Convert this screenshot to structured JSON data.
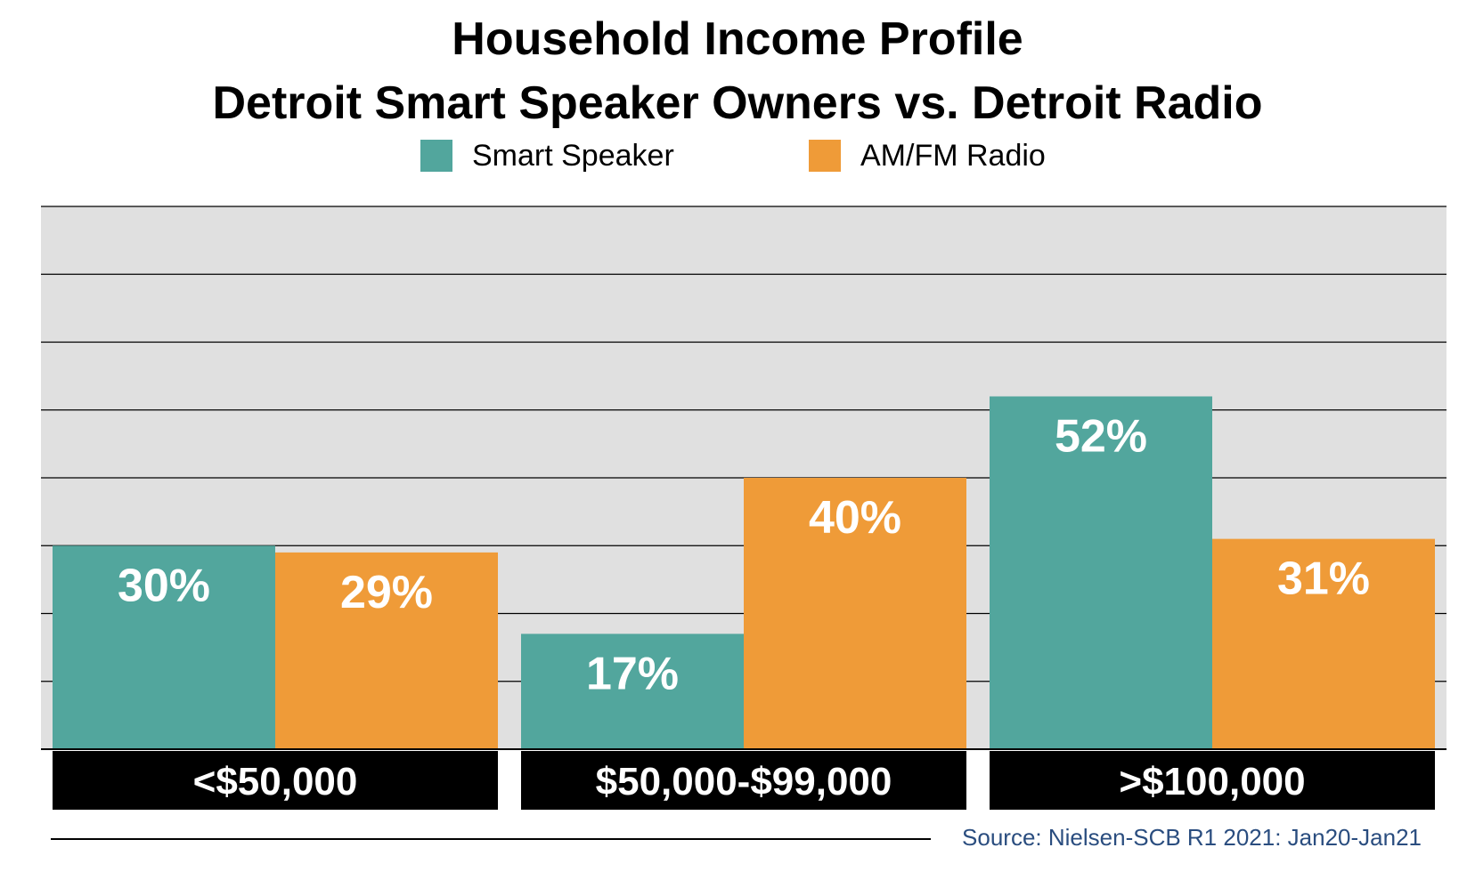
{
  "chart_data": {
    "type": "bar",
    "title": "Household Income Profile",
    "subtitle": "Detroit Smart Speaker Owners vs. Detroit Radio",
    "categories": [
      "<$50,000",
      "$50,000-$99,000",
      ">$100,000"
    ],
    "series": [
      {
        "name": "Smart Speaker",
        "values": [
          30,
          17,
          52
        ],
        "labels": [
          "30%",
          "17%",
          "52%"
        ],
        "color": "#52a69d"
      },
      {
        "name": "AM/FM Radio",
        "values": [
          29,
          40,
          31
        ],
        "labels": [
          "29%",
          "40%",
          "31%"
        ],
        "color": "#ef9b38"
      }
    ],
    "ylim": [
      0,
      80
    ],
    "grid": true,
    "legend": "top-center",
    "plot_background": "#e0e0e0",
    "category_label_background": "#000000"
  },
  "source": "Source: Nielsen-SCB R1 2021: Jan20-Jan21"
}
